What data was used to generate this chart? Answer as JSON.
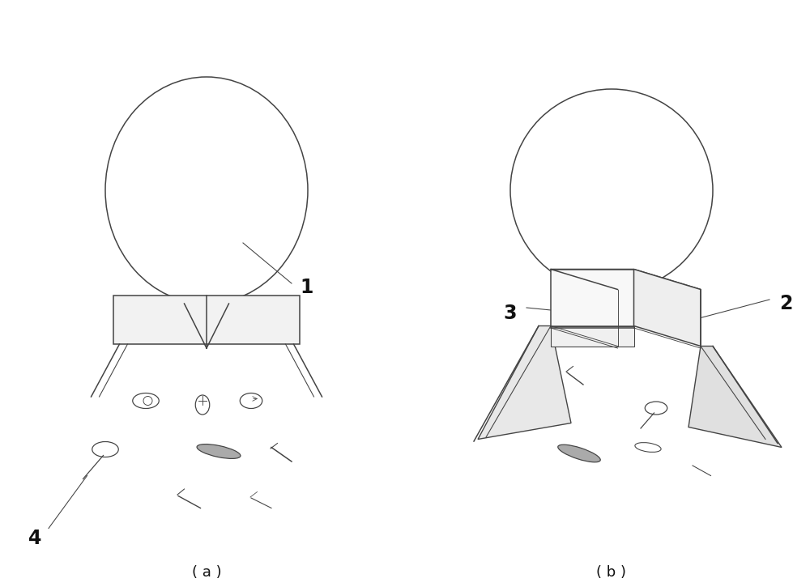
{
  "background_color": "#ffffff",
  "fig_width": 10.0,
  "fig_height": 7.25,
  "label_a": "( a )",
  "label_b": "( b )",
  "label_1": "1",
  "label_2": "2",
  "label_3": "3",
  "label_4": "4",
  "line_color": "#444444",
  "line_width": 1.1,
  "fill_color": "#ffffff",
  "fill_light": "#f2f2f2"
}
